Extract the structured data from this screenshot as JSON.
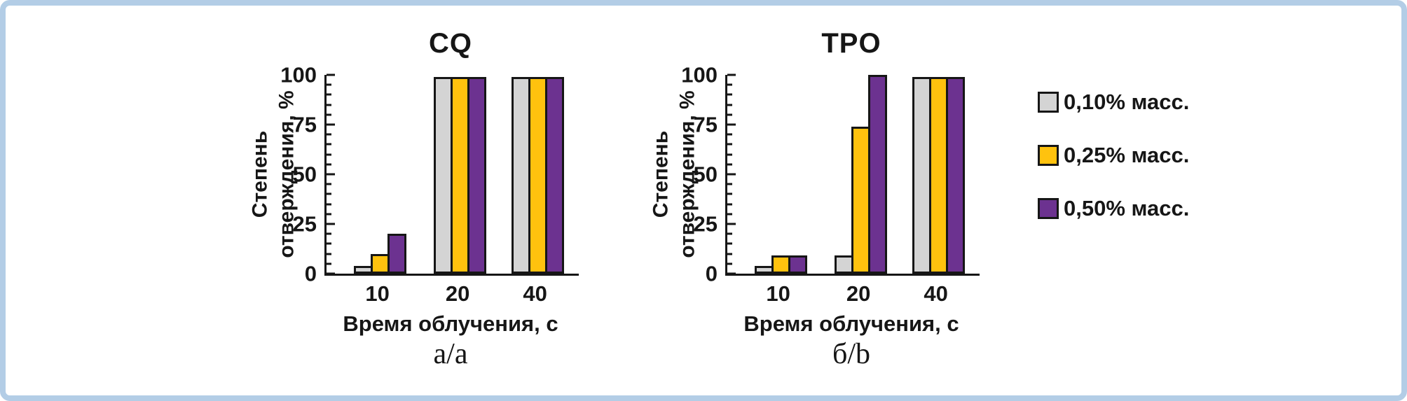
{
  "frame": {
    "border_color": "#b3cde6",
    "background": "#ffffff"
  },
  "legend": {
    "position": "right",
    "items": [
      {
        "label": "0,10% масс.",
        "color": "#d4d4d4"
      },
      {
        "label": "0,25% масс.",
        "color": "#ffc20e"
      },
      {
        "label": "0,50% масс.",
        "color": "#6c3290"
      }
    ]
  },
  "chart_data": [
    {
      "type": "bar",
      "title": "CQ",
      "caption": "а/а",
      "xlabel": "Время облучения, с",
      "ylabel": "Степень отверждения, %",
      "ylabel_lines": [
        "Степень",
        "отверждения, %"
      ],
      "categories": [
        "10",
        "20",
        "40"
      ],
      "series": [
        {
          "name": "0,10% масс.",
          "color": "#d4d4d4",
          "values": [
            4,
            99,
            99
          ]
        },
        {
          "name": "0,25% масс.",
          "color": "#ffc20e",
          "values": [
            10,
            99,
            99
          ]
        },
        {
          "name": "0,50% масс.",
          "color": "#6c3290",
          "values": [
            20,
            99,
            99
          ]
        }
      ],
      "ylim": [
        0,
        100
      ],
      "yticks": [
        0,
        25,
        50,
        75,
        100
      ],
      "minor_tick_step": 5,
      "grid": false
    },
    {
      "type": "bar",
      "title": "TPO",
      "caption": "б/b",
      "xlabel": "Время облучения, с",
      "ylabel": "Степень отверждения, %",
      "ylabel_lines": [
        "Степень",
        "отверждения, %"
      ],
      "categories": [
        "10",
        "20",
        "40"
      ],
      "series": [
        {
          "name": "0,10% масс.",
          "color": "#d4d4d4",
          "values": [
            4,
            9,
            99
          ]
        },
        {
          "name": "0,25% масс.",
          "color": "#ffc20e",
          "values": [
            9,
            74,
            99
          ]
        },
        {
          "name": "0,50% масс.",
          "color": "#6c3290",
          "values": [
            9,
            100,
            99
          ]
        }
      ],
      "ylim": [
        0,
        100
      ],
      "yticks": [
        0,
        25,
        50,
        75,
        100
      ],
      "minor_tick_step": 5,
      "grid": false
    }
  ]
}
